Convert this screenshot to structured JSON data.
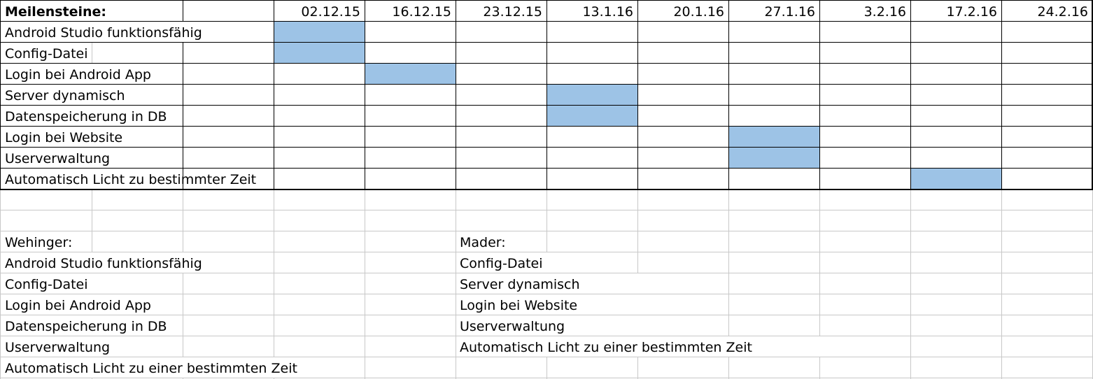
{
  "sheet": {
    "header_label": "Meilensteine:",
    "dates": [
      "02.12.15",
      "16.12.15",
      "23.12.15",
      "13.1.16",
      "20.1.16",
      "27.1.16",
      "3.2.16",
      "17.2.16",
      "24.2.16"
    ],
    "milestones": [
      {
        "label": "Android Studio funktionsfähig",
        "filled_date_index": 0
      },
      {
        "label": "Config-Datei",
        "filled_date_index": 0
      },
      {
        "label": "Login bei Android App",
        "filled_date_index": 1
      },
      {
        "label": "Server dynamisch",
        "filled_date_index": 3
      },
      {
        "label": "Datenspeicherung in DB",
        "filled_date_index": 3
      },
      {
        "label": "Login bei Website",
        "filled_date_index": 5
      },
      {
        "label": "Userverwaltung",
        "filled_date_index": 5
      },
      {
        "label": "Automatisch Licht zu bestimmter Zeit",
        "filled_date_index": 7
      }
    ],
    "fill_color": "#9dc3e6",
    "grid_color": "#c8c8c8",
    "assignments": {
      "left": {
        "name": "Wehinger:",
        "tasks": [
          "Android Studio funktionsfähig",
          "Config-Datei",
          "Login bei Android App",
          "Datenspeicherung in DB",
          "Userverwaltung",
          "Automatisch Licht zu einer bestimmten Zeit"
        ]
      },
      "right": {
        "name": "Mader:",
        "tasks": [
          "Config-Datei",
          "Server dynamisch",
          "Login bei Website",
          "Userverwaltung",
          "Automatisch Licht zu einer bestimmten Zeit"
        ]
      }
    }
  }
}
